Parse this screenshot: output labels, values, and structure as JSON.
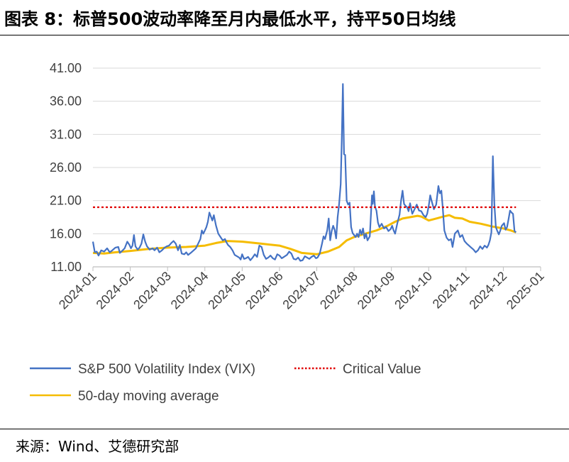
{
  "title": "图表 8：标普500波动率降至月内最低水平，持平50日均线",
  "source": "来源：Wind、艾德研究部",
  "chart_data": {
    "type": "line",
    "title": "标普500波动率降至月内最低水平，持平50日均线",
    "xlabel": "",
    "ylabel": "",
    "ylim": [
      11,
      41
    ],
    "y_ticks": [
      "11.00",
      "16.00",
      "21.00",
      "26.00",
      "31.00",
      "36.00",
      "41.00"
    ],
    "x_ticks": [
      "2024-01",
      "2024-02",
      "2024-03",
      "2024-04",
      "2024-05",
      "2024-06",
      "2024-07",
      "2024-08",
      "2024-09",
      "2024-10",
      "2024-11",
      "2024-12",
      "2025-01"
    ],
    "grid": "horizontal",
    "legend_position": "bottom",
    "colors": {
      "vix": "#4472C4",
      "critical": "#E00000",
      "ma50": "#F5BC00"
    },
    "series": [
      {
        "name": "S&P 500 Volatility Index (VIX)",
        "style": "solid",
        "points": [
          [
            0.0,
            14.8
          ],
          [
            0.05,
            13.2
          ],
          [
            0.1,
            13.3
          ],
          [
            0.15,
            12.7
          ],
          [
            0.22,
            13.5
          ],
          [
            0.3,
            13.3
          ],
          [
            0.38,
            13.8
          ],
          [
            0.45,
            13.2
          ],
          [
            0.52,
            13.5
          ],
          [
            0.6,
            13.9
          ],
          [
            0.68,
            14.0
          ],
          [
            0.72,
            13.1
          ],
          [
            0.78,
            13.4
          ],
          [
            0.85,
            13.8
          ],
          [
            0.92,
            14.8
          ],
          [
            0.98,
            14.3
          ],
          [
            1.02,
            13.8
          ],
          [
            1.06,
            14.2
          ],
          [
            1.1,
            15.8
          ],
          [
            1.14,
            14.1
          ],
          [
            1.2,
            13.6
          ],
          [
            1.25,
            13.9
          ],
          [
            1.3,
            14.5
          ],
          [
            1.35,
            15.9
          ],
          [
            1.4,
            14.8
          ],
          [
            1.45,
            14.1
          ],
          [
            1.52,
            13.6
          ],
          [
            1.6,
            13.8
          ],
          [
            1.65,
            13.5
          ],
          [
            1.72,
            13.9
          ],
          [
            1.78,
            13.2
          ],
          [
            1.85,
            13.5
          ],
          [
            1.92,
            13.9
          ],
          [
            1.98,
            14.1
          ],
          [
            2.04,
            14.2
          ],
          [
            2.1,
            14.6
          ],
          [
            2.16,
            14.9
          ],
          [
            2.22,
            14.5
          ],
          [
            2.28,
            13.5
          ],
          [
            2.33,
            14.3
          ],
          [
            2.38,
            13.0
          ],
          [
            2.45,
            12.9
          ],
          [
            2.5,
            13.2
          ],
          [
            2.55,
            12.8
          ],
          [
            2.62,
            13.1
          ],
          [
            2.7,
            13.5
          ],
          [
            2.76,
            13.8
          ],
          [
            2.82,
            14.5
          ],
          [
            2.88,
            15.2
          ],
          [
            2.92,
            16.5
          ],
          [
            2.96,
            16.0
          ],
          [
            3.0,
            16.5
          ],
          [
            3.04,
            17.0
          ],
          [
            3.08,
            17.8
          ],
          [
            3.12,
            19.2
          ],
          [
            3.16,
            18.6
          ],
          [
            3.2,
            18.0
          ],
          [
            3.24,
            18.8
          ],
          [
            3.3,
            17.2
          ],
          [
            3.36,
            16.0
          ],
          [
            3.42,
            15.5
          ],
          [
            3.48,
            15.0
          ],
          [
            3.54,
            15.2
          ],
          [
            3.58,
            14.7
          ],
          [
            3.62,
            14.3
          ],
          [
            3.68,
            14.0
          ],
          [
            3.74,
            13.5
          ],
          [
            3.8,
            12.8
          ],
          [
            3.86,
            12.6
          ],
          [
            3.92,
            12.4
          ],
          [
            3.96,
            12.1
          ],
          [
            4.0,
            12.9
          ],
          [
            4.05,
            12.2
          ],
          [
            4.1,
            12.3
          ],
          [
            4.16,
            12.5
          ],
          [
            4.22,
            12.0
          ],
          [
            4.28,
            12.4
          ],
          [
            4.34,
            12.9
          ],
          [
            4.4,
            12.5
          ],
          [
            4.46,
            14.2
          ],
          [
            4.52,
            14.0
          ],
          [
            4.58,
            12.8
          ],
          [
            4.64,
            12.2
          ],
          [
            4.7,
            12.4
          ],
          [
            4.76,
            12.7
          ],
          [
            4.82,
            12.3
          ],
          [
            4.88,
            12.1
          ],
          [
            4.94,
            12.9
          ],
          [
            5.0,
            12.7
          ],
          [
            5.06,
            12.3
          ],
          [
            5.12,
            12.5
          ],
          [
            5.2,
            12.8
          ],
          [
            5.26,
            13.3
          ],
          [
            5.32,
            13.0
          ],
          [
            5.38,
            12.2
          ],
          [
            5.44,
            12.1
          ],
          [
            5.5,
            12.4
          ],
          [
            5.56,
            11.9
          ],
          [
            5.62,
            12.0
          ],
          [
            5.68,
            12.6
          ],
          [
            5.74,
            12.4
          ],
          [
            5.8,
            12.2
          ],
          [
            5.86,
            12.5
          ],
          [
            5.92,
            12.7
          ],
          [
            5.98,
            12.3
          ],
          [
            6.02,
            12.4
          ],
          [
            6.08,
            13.0
          ],
          [
            6.14,
            14.5
          ],
          [
            6.18,
            15.6
          ],
          [
            6.22,
            15.2
          ],
          [
            6.28,
            16.5
          ],
          [
            6.32,
            18.3
          ],
          [
            6.36,
            15.0
          ],
          [
            6.4,
            16.4
          ],
          [
            6.44,
            17.2
          ],
          [
            6.48,
            16.6
          ],
          [
            6.52,
            15.3
          ],
          [
            6.56,
            18.5
          ],
          [
            6.6,
            20.5
          ],
          [
            6.64,
            23.5
          ],
          [
            6.67,
            30.0
          ],
          [
            6.7,
            38.6
          ],
          [
            6.73,
            28.0
          ],
          [
            6.76,
            27.9
          ],
          [
            6.8,
            21.0
          ],
          [
            6.84,
            20.4
          ],
          [
            6.88,
            20.7
          ],
          [
            6.92,
            17.0
          ],
          [
            6.96,
            16.1
          ],
          [
            7.0,
            15.8
          ],
          [
            7.04,
            15.5
          ],
          [
            7.08,
            16.0
          ],
          [
            7.12,
            15.5
          ],
          [
            7.16,
            16.6
          ],
          [
            7.2,
            15.9
          ],
          [
            7.24,
            16.8
          ],
          [
            7.28,
            15.3
          ],
          [
            7.32,
            16.0
          ],
          [
            7.36,
            15.0
          ],
          [
            7.42,
            15.6
          ],
          [
            7.48,
            21.8
          ],
          [
            7.5,
            20.5
          ],
          [
            7.53,
            22.4
          ],
          [
            7.56,
            20.1
          ],
          [
            7.6,
            19.5
          ],
          [
            7.64,
            17.7
          ],
          [
            7.68,
            17.0
          ],
          [
            7.74,
            17.5
          ],
          [
            7.8,
            16.8
          ],
          [
            7.86,
            17.0
          ],
          [
            7.92,
            16.4
          ],
          [
            7.98,
            16.7
          ],
          [
            8.02,
            17.2
          ],
          [
            8.06,
            16.5
          ],
          [
            8.1,
            16.0
          ],
          [
            8.16,
            17.6
          ],
          [
            8.22,
            18.9
          ],
          [
            8.26,
            21.0
          ],
          [
            8.3,
            22.5
          ],
          [
            8.34,
            20.5
          ],
          [
            8.38,
            20.2
          ],
          [
            8.42,
            20.0
          ],
          [
            8.46,
            19.4
          ],
          [
            8.5,
            20.6
          ],
          [
            8.56,
            19.0
          ],
          [
            8.62,
            19.7
          ],
          [
            8.68,
            20.4
          ],
          [
            8.74,
            19.5
          ],
          [
            8.8,
            19.4
          ],
          [
            8.86,
            18.8
          ],
          [
            8.92,
            18.5
          ],
          [
            8.96,
            19.0
          ],
          [
            9.0,
            20.2
          ],
          [
            9.04,
            21.8
          ],
          [
            9.08,
            20.9
          ],
          [
            9.14,
            19.7
          ],
          [
            9.2,
            20.4
          ],
          [
            9.26,
            23.2
          ],
          [
            9.3,
            22.1
          ],
          [
            9.34,
            22.5
          ],
          [
            9.38,
            19.7
          ],
          [
            9.42,
            16.5
          ],
          [
            9.48,
            15.4
          ],
          [
            9.54,
            15.0
          ],
          [
            9.6,
            15.2
          ],
          [
            9.64,
            14.0
          ],
          [
            9.7,
            16.0
          ],
          [
            9.78,
            16.5
          ],
          [
            9.84,
            15.5
          ],
          [
            9.9,
            15.8
          ],
          [
            9.96,
            14.9
          ],
          [
            10.02,
            14.5
          ],
          [
            10.08,
            14.2
          ],
          [
            10.14,
            13.9
          ],
          [
            10.2,
            13.6
          ],
          [
            10.26,
            13.2
          ],
          [
            10.32,
            13.5
          ],
          [
            10.38,
            14.1
          ],
          [
            10.44,
            13.7
          ],
          [
            10.5,
            14.2
          ],
          [
            10.56,
            13.9
          ],
          [
            10.6,
            14.3
          ],
          [
            10.64,
            15.0
          ],
          [
            10.68,
            16.2
          ],
          [
            10.72,
            27.7
          ],
          [
            10.76,
            20.5
          ],
          [
            10.8,
            17.0
          ],
          [
            10.84,
            16.4
          ],
          [
            10.88,
            15.9
          ],
          [
            10.92,
            16.5
          ],
          [
            10.96,
            17.2
          ],
          [
            11.02,
            17.6
          ],
          [
            11.06,
            16.6
          ],
          [
            11.1,
            17.0
          ],
          [
            11.14,
            18.2
          ],
          [
            11.18,
            19.5
          ],
          [
            11.22,
            19.2
          ],
          [
            11.26,
            19.0
          ],
          [
            11.3,
            16.4
          ],
          [
            11.34,
            16.2
          ]
        ]
      },
      {
        "name": "Critical Value",
        "style": "dotted",
        "points": [
          [
            0.0,
            20.0
          ],
          [
            11.34,
            20.0
          ]
        ]
      },
      {
        "name": "50-day moving average",
        "style": "solid",
        "points": [
          [
            0.0,
            13.1
          ],
          [
            0.3,
            13.0
          ],
          [
            0.6,
            13.2
          ],
          [
            1.0,
            13.4
          ],
          [
            1.5,
            13.7
          ],
          [
            2.0,
            13.9
          ],
          [
            2.5,
            14.0
          ],
          [
            3.0,
            14.2
          ],
          [
            3.3,
            14.6
          ],
          [
            3.6,
            14.9
          ],
          [
            4.0,
            14.8
          ],
          [
            4.5,
            14.5
          ],
          [
            5.0,
            14.2
          ],
          [
            5.3,
            13.7
          ],
          [
            5.6,
            13.1
          ],
          [
            6.0,
            12.9
          ],
          [
            6.3,
            13.3
          ],
          [
            6.6,
            14.0
          ],
          [
            6.8,
            15.0
          ],
          [
            7.0,
            15.5
          ],
          [
            7.3,
            16.0
          ],
          [
            7.6,
            16.5
          ],
          [
            7.9,
            17.2
          ],
          [
            8.1,
            17.8
          ],
          [
            8.3,
            18.3
          ],
          [
            8.5,
            18.5
          ],
          [
            8.7,
            18.7
          ],
          [
            8.8,
            18.6
          ],
          [
            9.0,
            18.0
          ],
          [
            9.2,
            18.3
          ],
          [
            9.4,
            18.6
          ],
          [
            9.55,
            18.8
          ],
          [
            9.7,
            18.4
          ],
          [
            9.9,
            18.3
          ],
          [
            10.1,
            17.8
          ],
          [
            10.4,
            17.5
          ],
          [
            10.7,
            17.1
          ],
          [
            11.0,
            16.8
          ],
          [
            11.2,
            16.5
          ],
          [
            11.34,
            16.2
          ]
        ]
      }
    ]
  }
}
